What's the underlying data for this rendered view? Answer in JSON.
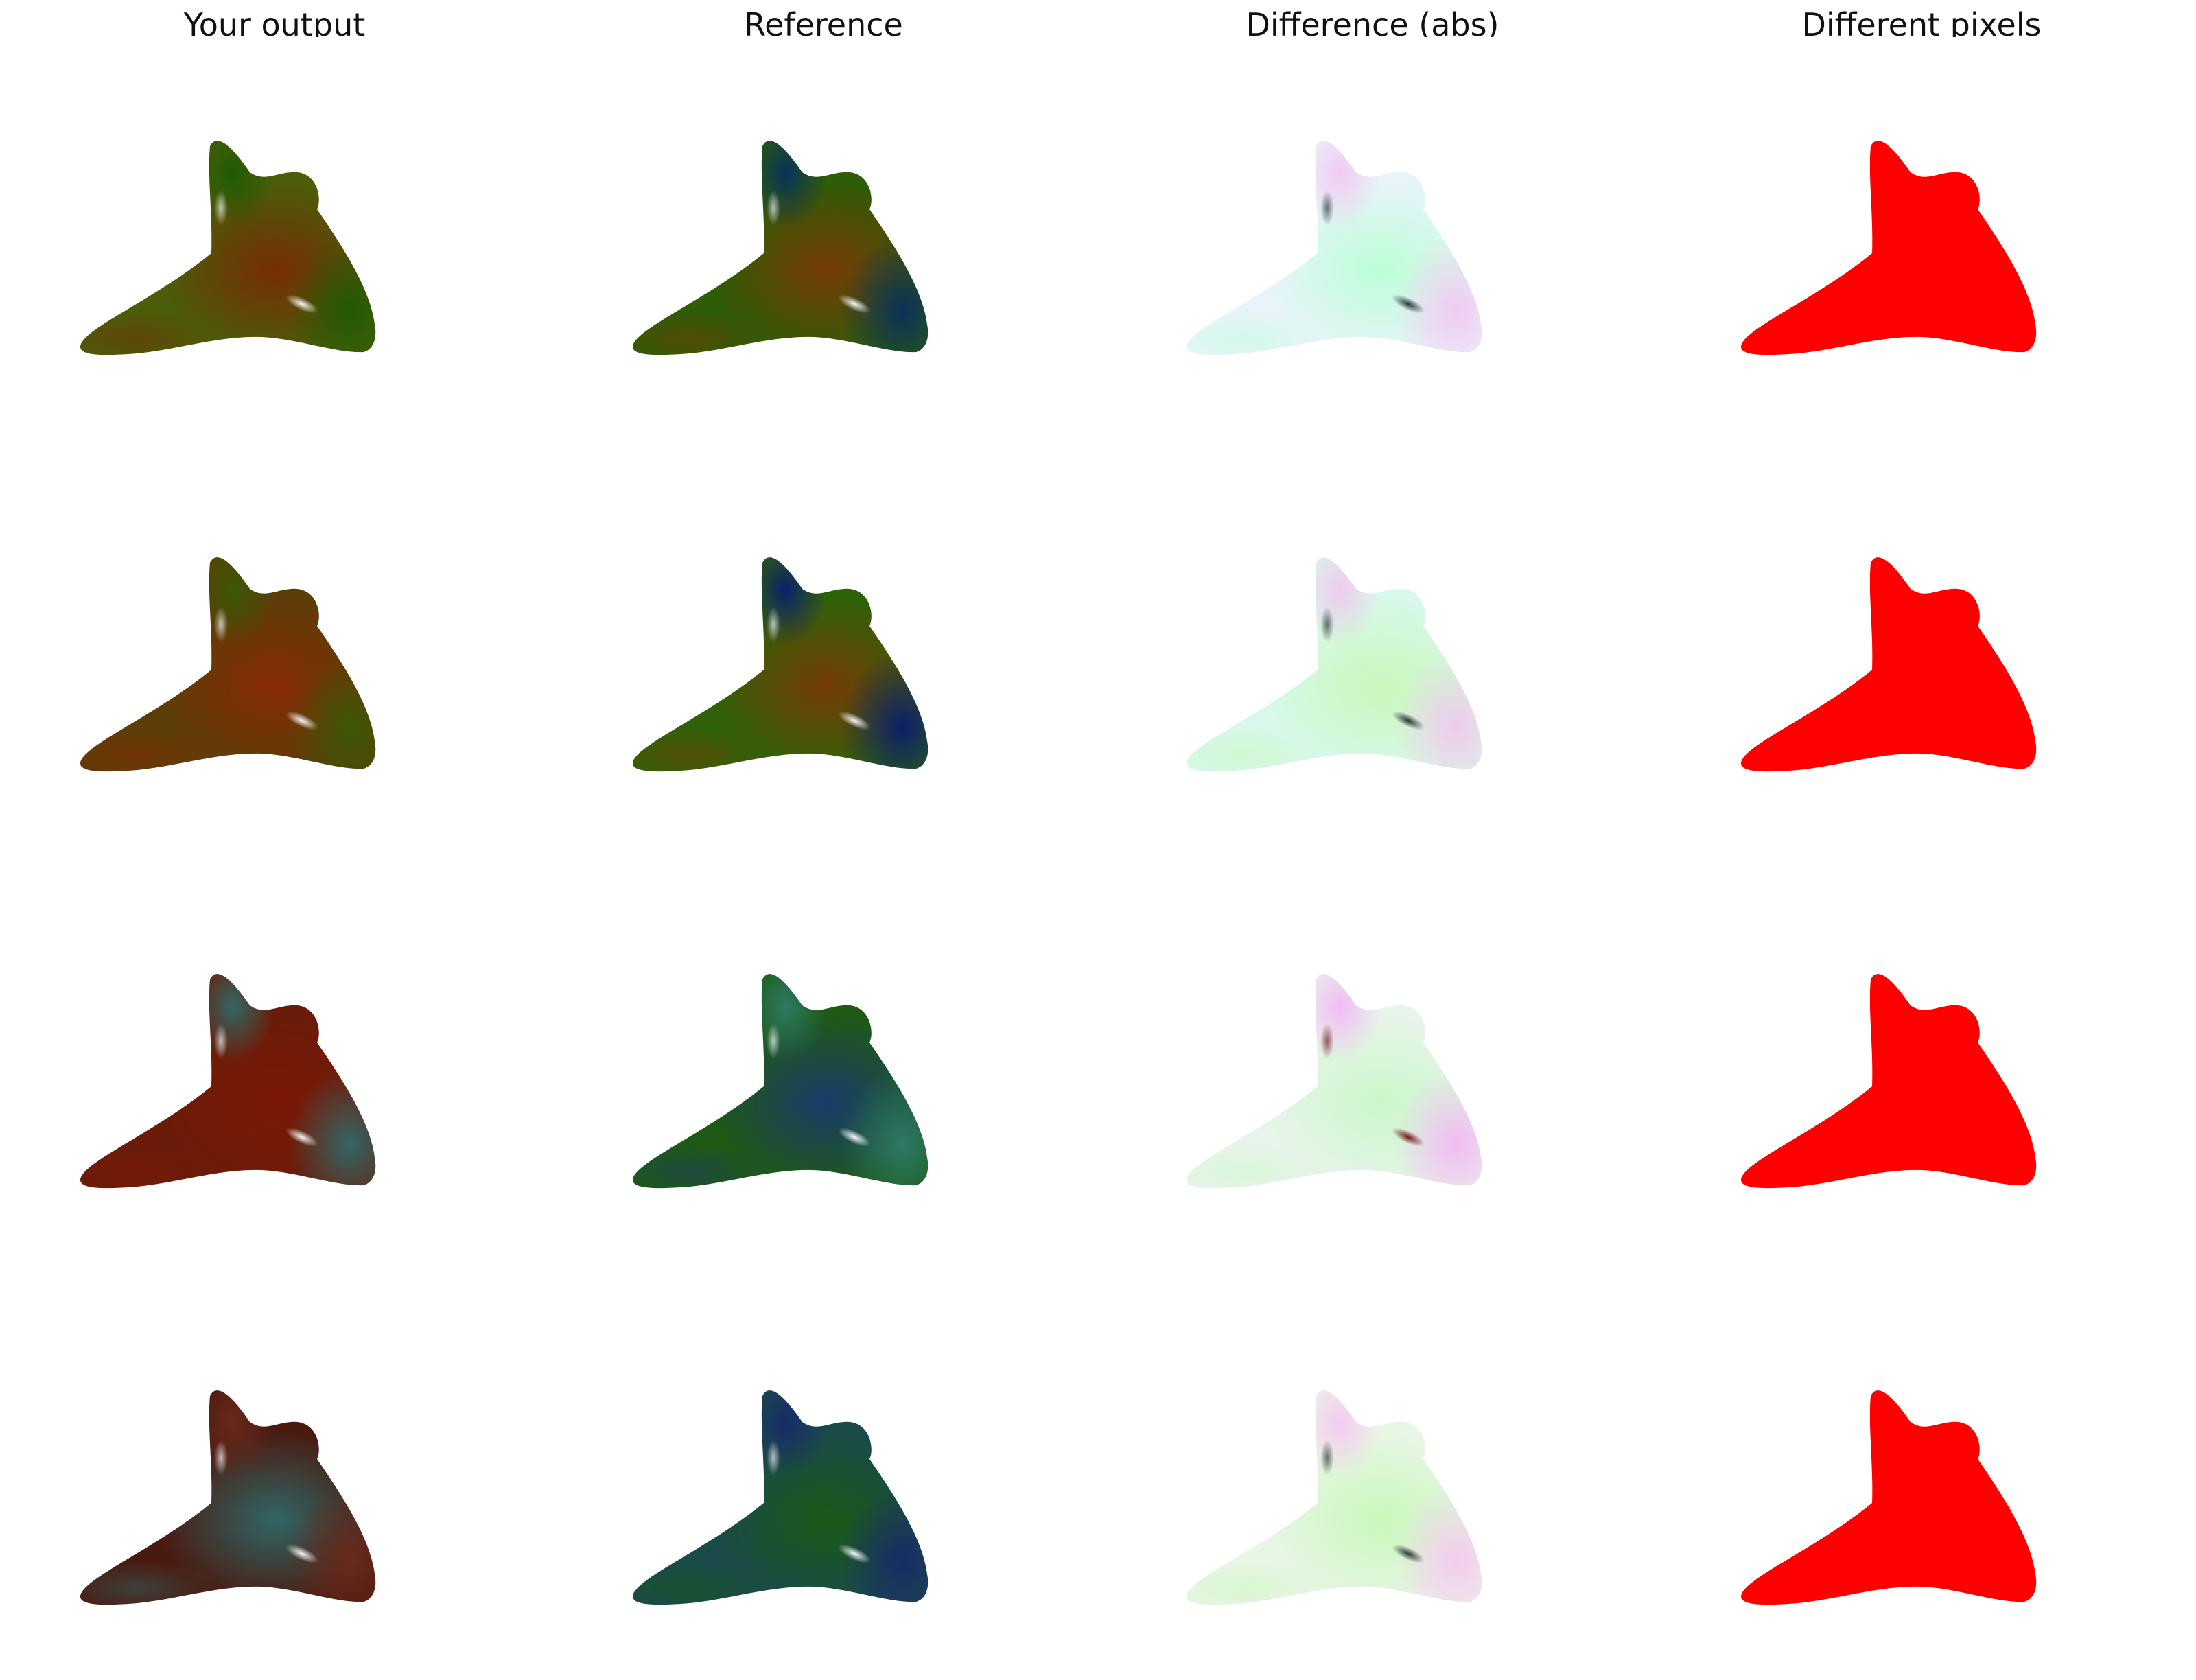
{
  "columns": [
    {
      "title": "Your output",
      "kind": "output"
    },
    {
      "title": "Reference",
      "kind": "reference"
    },
    {
      "title": "Difference (abs)",
      "kind": "difference"
    },
    {
      "title": "Different pixels",
      "kind": "mask"
    }
  ],
  "rows": [
    {
      "output": {
        "base": "#4a5e08",
        "a": "#7a2a06",
        "b": "#1f5a04",
        "spec": "#ffffff"
      },
      "reference": {
        "base": "#2e5c07",
        "a": "#7c3a05",
        "b": "#06305e",
        "spec": "#ffffff"
      },
      "difference": {
        "base": "#e8f4fa",
        "a": "#b8ffd4",
        "b": "#f2c8f2",
        "spec": "#203030"
      }
    },
    {
      "output": {
        "base": "#5c3d08",
        "a": "#8a2a06",
        "b": "#3a5a06",
        "spec": "#ffffff"
      },
      "reference": {
        "base": "#2f6208",
        "a": "#7a3a05",
        "b": "#0a1c70",
        "spec": "#ffffff"
      },
      "difference": {
        "base": "#d8f8ea",
        "a": "#c8f8b8",
        "b": "#f0c8ec",
        "spec": "#203030"
      }
    },
    {
      "output": {
        "base": "#6a1c08",
        "a": "#7a1806",
        "b": "#2f6a6a",
        "spec": "#ffffff"
      },
      "reference": {
        "base": "#1e5a14",
        "a": "#1a3a70",
        "b": "#2e7a6a",
        "spec": "#ffffff"
      },
      "difference": {
        "base": "#e8f4ea",
        "a": "#c8f8c8",
        "b": "#f2b8f4",
        "spec": "#6a1010"
      }
    },
    {
      "output": {
        "base": "#4a1a10",
        "a": "#2f6a6a",
        "b": "#6a2a1a",
        "spec": "#ffffff"
      },
      "reference": {
        "base": "#1a4a4a",
        "a": "#1a5a14",
        "b": "#182a6a",
        "spec": "#ffffff"
      },
      "difference": {
        "base": "#e8f6e6",
        "a": "#c8f8b8",
        "b": "#f6c8f0",
        "spec": "#203030"
      }
    }
  ],
  "colors": {
    "background": "#ffffff",
    "mask": "#ff0000",
    "title": "#111111"
  }
}
